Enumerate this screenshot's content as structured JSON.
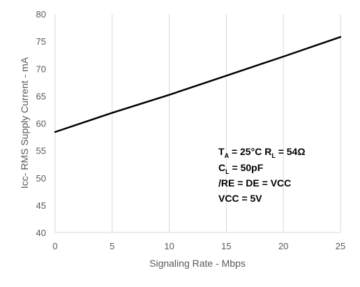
{
  "chart_data": {
    "type": "line",
    "title": "",
    "xlabel": "Signaling Rate - Mbps",
    "ylabel": "Icc- RMS Supply Current - mA",
    "xlim": [
      0,
      25
    ],
    "ylim": [
      40,
      80
    ],
    "xticks": [
      0,
      5,
      10,
      15,
      20,
      25
    ],
    "yticks": [
      40,
      45,
      50,
      55,
      60,
      65,
      70,
      75,
      80
    ],
    "grid": "vertical",
    "series": [
      {
        "x": [
          0,
          5,
          10,
          15,
          20,
          25
        ],
        "y": [
          58.4,
          61.9,
          65.2,
          68.7,
          72.2,
          75.8
        ],
        "color": "#000000"
      }
    ],
    "annotations": {
      "line1": {
        "ta_main": "T",
        "ta_sub": "A",
        "ta_rest": " = 25°C  R",
        "rl_sub": "L",
        "rl_rest": " = 54Ω"
      },
      "line2": {
        "cl_main": "C",
        "cl_sub": "L",
        "cl_rest": " = 50pF"
      },
      "line3": "/RE = DE = VCC",
      "line4": "VCC = 5V"
    }
  },
  "colors": {
    "gridline": "#d9d9d9",
    "line": "#000000",
    "tick_text": "#595959"
  }
}
